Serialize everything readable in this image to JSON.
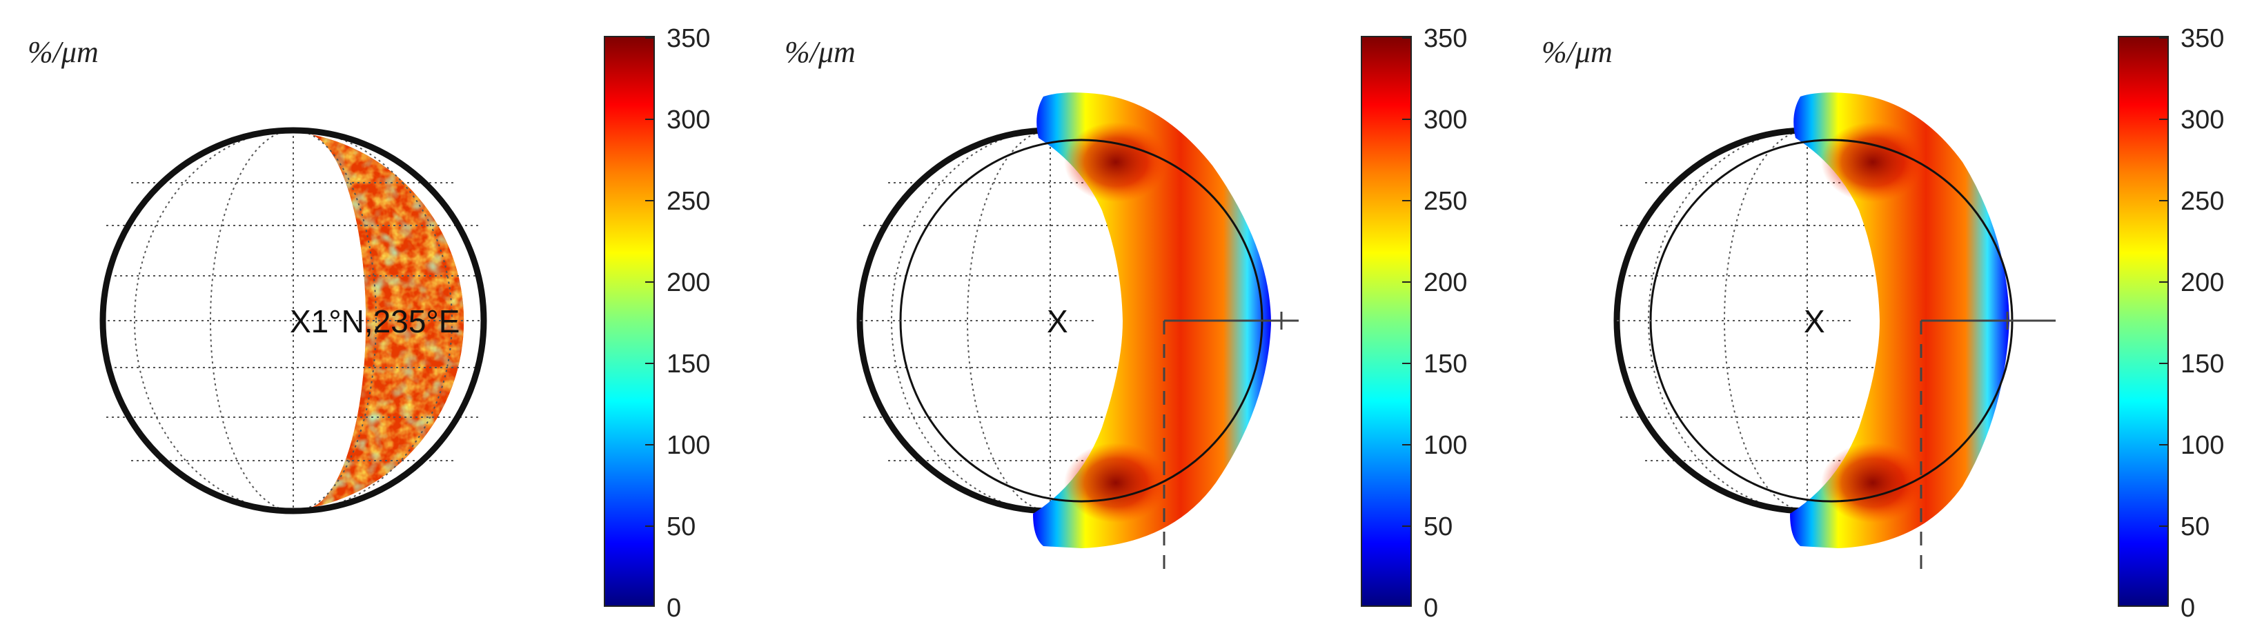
{
  "panels": [
    {
      "id": "observed",
      "unit_label": "%/μm",
      "center_label": "X1°N,235°E",
      "colorbar": {
        "min": 0,
        "max": 350,
        "ticks": [
          "350",
          "300",
          "250",
          "200",
          "150",
          "100",
          "50",
          "0"
        ]
      }
    },
    {
      "id": "model-1",
      "unit_label": "%/μm",
      "center_label": "X",
      "colorbar": {
        "min": 0,
        "max": 350,
        "ticks": [
          "350",
          "300",
          "250",
          "200",
          "150",
          "100",
          "50",
          "0"
        ]
      }
    },
    {
      "id": "model-2",
      "unit_label": "%/μm",
      "center_label": "X",
      "colorbar": {
        "min": 0,
        "max": 350,
        "ticks": [
          "350",
          "300",
          "250",
          "200",
          "150",
          "100",
          "50",
          "0"
        ]
      }
    }
  ],
  "colors": {
    "jet_stops": [
      "#00007f",
      "#0000ff",
      "#007fff",
      "#00ffff",
      "#7fff7f",
      "#ffff00",
      "#ff7f00",
      "#ff0000",
      "#7f0000"
    ],
    "globe_outline": "#111111",
    "grid": "#555555"
  }
}
